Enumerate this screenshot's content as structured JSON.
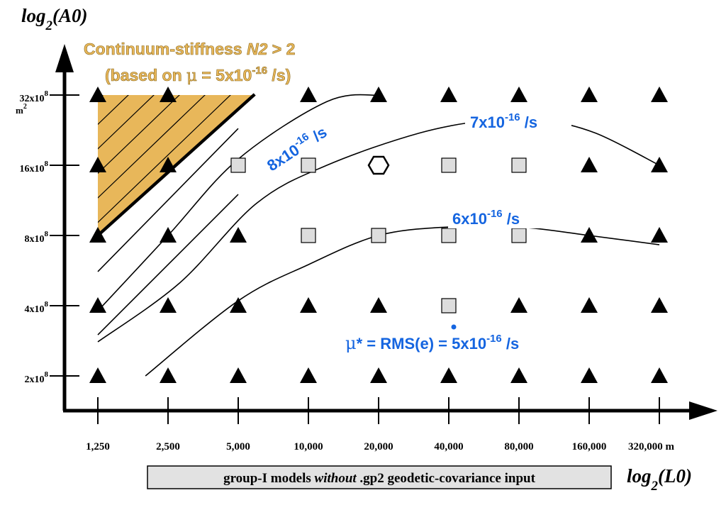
{
  "chart_data": {
    "type": "scatter",
    "x_axis": {
      "title_main": "log",
      "title_sub": "2",
      "title_arg": "(L0)",
      "scale": "log2",
      "ticks": [
        1250,
        2500,
        5000,
        10000,
        20000,
        40000,
        80000,
        160000,
        320000
      ],
      "tick_labels": [
        "1,250",
        "2,500",
        "5,000",
        "10,000",
        "20,000",
        "40,000",
        "80,000",
        "160,000",
        "320,000 m"
      ]
    },
    "y_axis": {
      "title_main": "log",
      "title_sub": "2",
      "title_arg": "(A0)",
      "scale": "log2",
      "ticks": [
        200000000,
        400000000,
        800000000,
        1600000000,
        3200000000
      ],
      "tick_labels": [
        {
          "base": "2x10",
          "exp": "8"
        },
        {
          "base": "4x10",
          "exp": "8"
        },
        {
          "base": "8x10",
          "exp": "8"
        },
        {
          "base": "16x10",
          "exp": "8"
        },
        {
          "base": "32x10",
          "exp": "8"
        }
      ],
      "unit_base": "m",
      "unit_exp": "2"
    },
    "markers": {
      "triangle": [
        [
          1250,
          3200000000
        ],
        [
          2500,
          3200000000
        ],
        [
          10000,
          3200000000
        ],
        [
          20000,
          3200000000
        ],
        [
          40000,
          3200000000
        ],
        [
          80000,
          3200000000
        ],
        [
          160000,
          3200000000
        ],
        [
          320000,
          3200000000
        ],
        [
          1250,
          1600000000
        ],
        [
          2500,
          1600000000
        ],
        [
          160000,
          1600000000
        ],
        [
          320000,
          1600000000
        ],
        [
          1250,
          800000000
        ],
        [
          2500,
          800000000
        ],
        [
          5000,
          800000000
        ],
        [
          160000,
          800000000
        ],
        [
          320000,
          800000000
        ],
        [
          1250,
          400000000
        ],
        [
          2500,
          400000000
        ],
        [
          5000,
          400000000
        ],
        [
          10000,
          400000000
        ],
        [
          20000,
          400000000
        ],
        [
          80000,
          400000000
        ],
        [
          160000,
          400000000
        ],
        [
          320000,
          400000000
        ],
        [
          1250,
          200000000
        ],
        [
          2500,
          200000000
        ],
        [
          5000,
          200000000
        ],
        [
          10000,
          200000000
        ],
        [
          20000,
          200000000
        ],
        [
          40000,
          200000000
        ],
        [
          80000,
          200000000
        ],
        [
          160000,
          200000000
        ],
        [
          320000,
          200000000
        ]
      ],
      "square": [
        [
          5000,
          1600000000
        ],
        [
          10000,
          1600000000
        ],
        [
          40000,
          1600000000
        ],
        [
          80000,
          1600000000
        ],
        [
          10000,
          800000000
        ],
        [
          20000,
          800000000
        ],
        [
          40000,
          800000000
        ],
        [
          80000,
          800000000
        ],
        [
          40000,
          400000000
        ]
      ],
      "hexagon": [
        [
          20000,
          1600000000
        ]
      ]
    },
    "region": {
      "label_line1_a": "Continuum-stiffness ",
      "label_line1_b": "N2",
      "label_line1_c": " > 2",
      "label_line2_a": "(based on ",
      "label_line2_mu": "μ",
      "label_line2_b": " = 5x10",
      "label_line2_exp": "-16",
      "label_line2_c": " /s)",
      "color": "#e8b75a",
      "vertices": [
        [
          1250,
          3200000000
        ],
        [
          5800,
          3200000000
        ],
        [
          1250,
          800000000
        ]
      ]
    },
    "contours": [
      {
        "label_base": "8x10",
        "label_exp": "-16",
        "label_unit": " /s",
        "path": [
          [
            1250,
            380000000
          ],
          [
            2500,
            800000000
          ],
          [
            5000,
            1700000000
          ],
          [
            12000,
            3000000000
          ],
          [
            20000,
            3200000000
          ]
        ]
      },
      {
        "label_base": "7x10",
        "label_exp": "-16",
        "label_unit": " /s",
        "path": [
          [
            1250,
            280000000
          ],
          [
            2800,
            500000000
          ],
          [
            6000,
            1100000000
          ],
          [
            12000,
            1600000000
          ],
          [
            30000,
            2200000000
          ],
          [
            60000,
            2500000000
          ],
          [
            100000,
            2500000000
          ],
          [
            170000,
            2200000000
          ],
          [
            320000,
            1600000000
          ]
        ]
      },
      {
        "label_base": "6x10",
        "label_exp": "-16",
        "label_unit": " /s",
        "path": [
          [
            2000,
            200000000
          ],
          [
            5000,
            420000000
          ],
          [
            10000,
            600000000
          ],
          [
            20000,
            800000000
          ],
          [
            40000,
            870000000
          ],
          [
            80000,
            870000000
          ],
          [
            160000,
            800000000
          ],
          [
            320000,
            730000000
          ]
        ]
      }
    ],
    "hatch_lines": [
      [
        [
          1250,
          560000000
        ],
        [
          5000,
          2300000000
        ]
      ],
      [
        [
          1250,
          300000000
        ],
        [
          5000,
          1200000000
        ]
      ]
    ],
    "annotation": {
      "mu": "μ",
      "a": "* = RMS(",
      "e": "e",
      "b": ") = 5x10",
      "exp": "-16",
      "c": " /s"
    },
    "footer": {
      "a": "group-I models ",
      "italic": "without",
      "b": " .gp2 geodetic-covariance input"
    },
    "colors": {
      "contour_label": "#1565e0",
      "region": "#e8b75a",
      "square_fill": "#dddddd",
      "footer_bg": "#e2e2e2"
    }
  }
}
